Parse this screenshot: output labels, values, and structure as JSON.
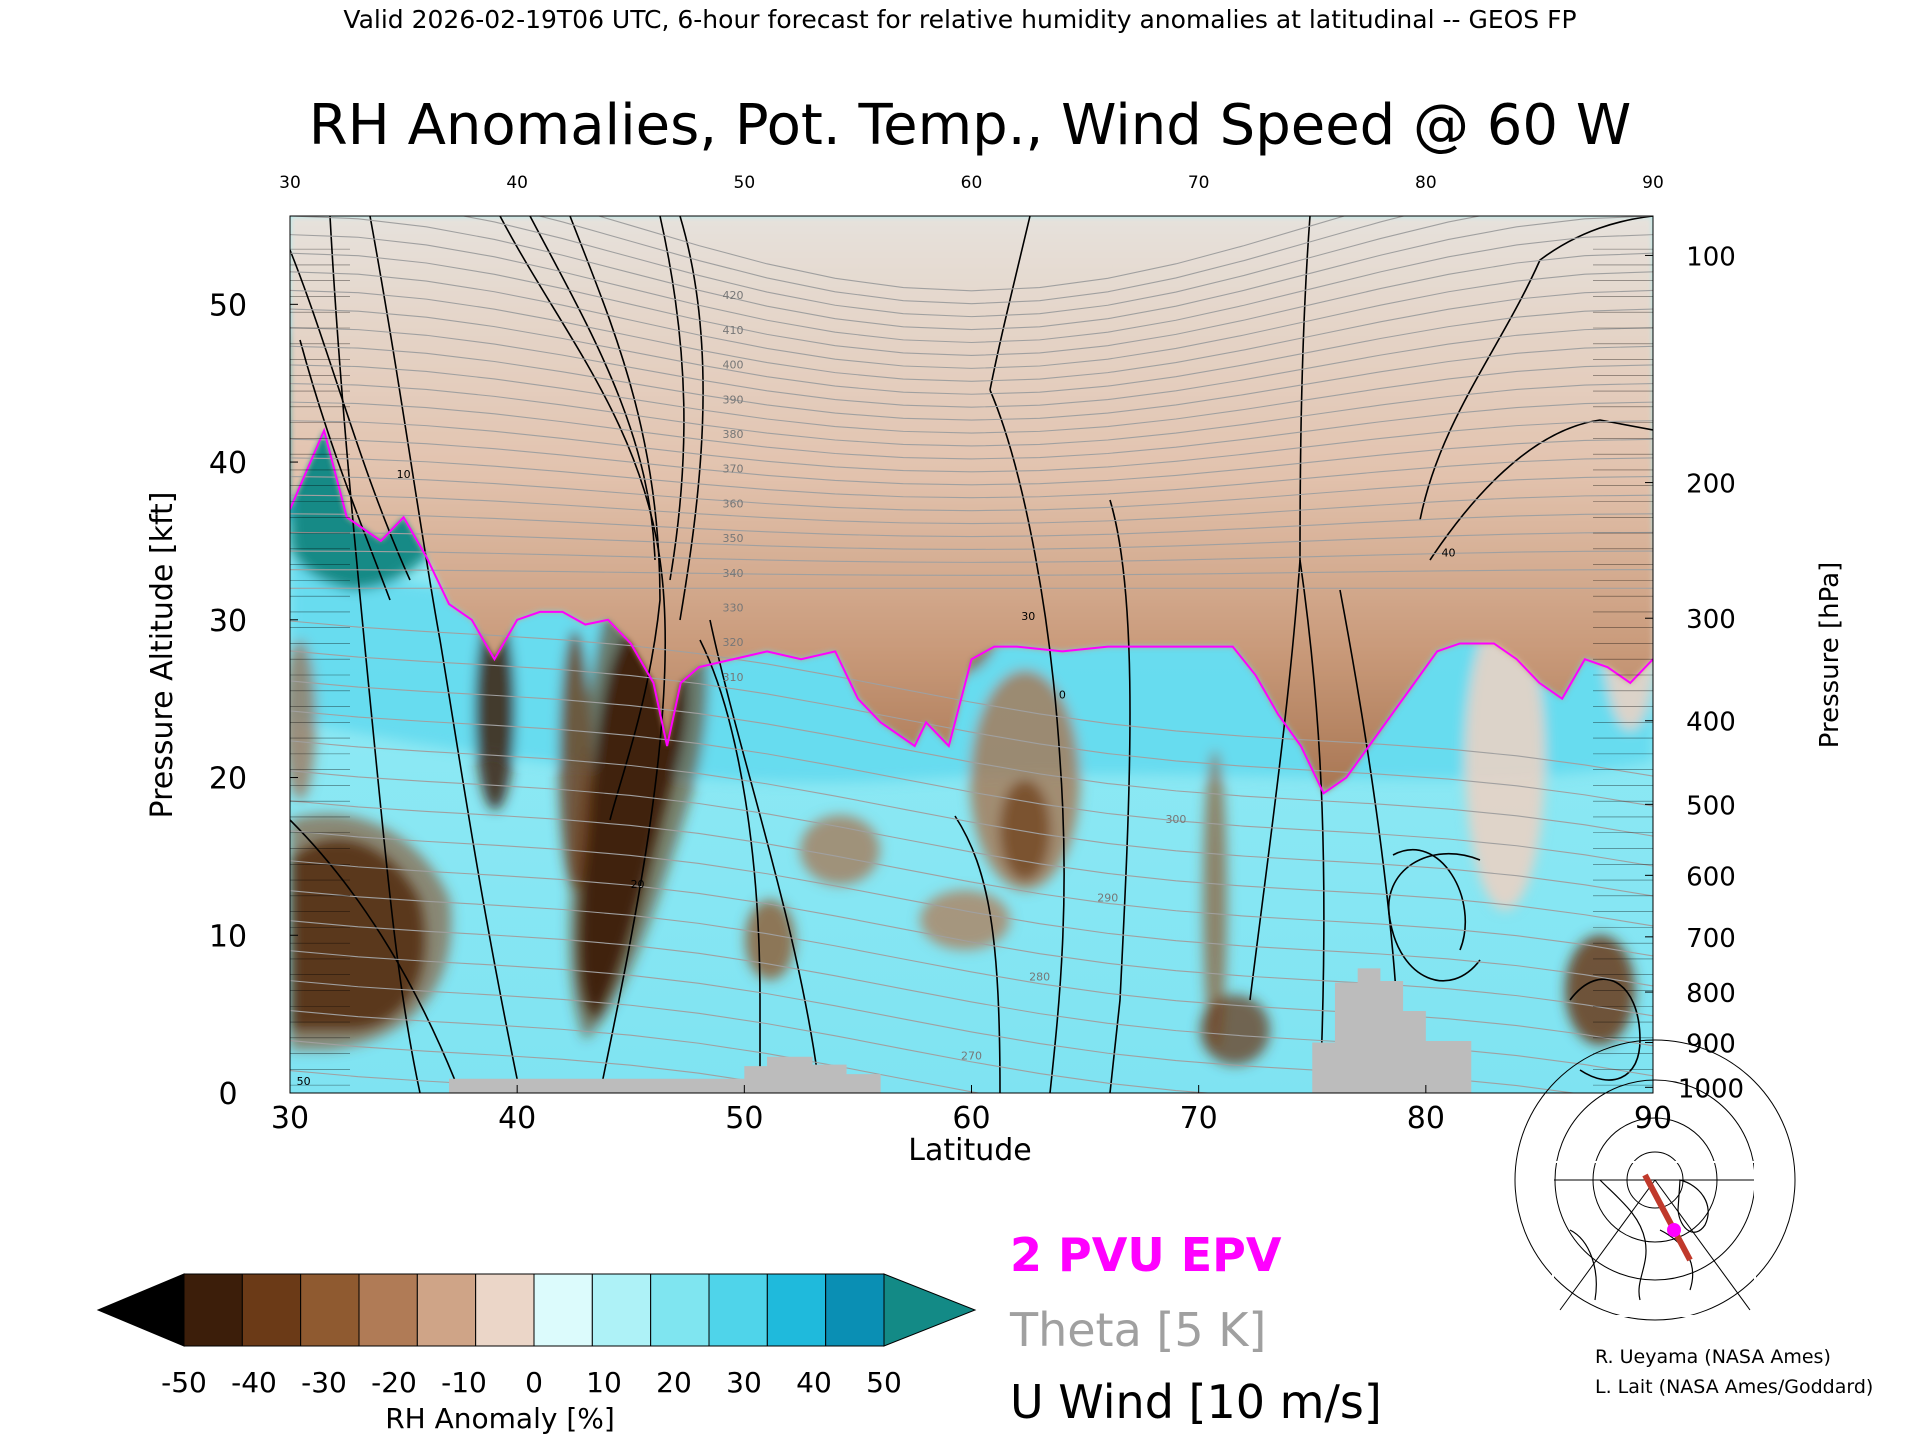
{
  "header": "Valid 2026-02-19T06 UTC, 6-hour forecast for relative humidity anomalies at latitudinal -- GEOS FP",
  "colors": {
    "epv": "#ff00ff",
    "theta": "#a0a0a0",
    "wind": "#000000",
    "terrain": "#bcbcbc",
    "track": "#c0392b"
  },
  "chart_data": {
    "type": "heatmap",
    "title": "RH Anomalies, Pot. Temp., Wind Speed @ 60 W",
    "xlabel": "Latitude",
    "ylabel": "Pressure Altitude [kft]",
    "ylabel_right": "Pressure [hPa]",
    "xlim": [
      30,
      90
    ],
    "ylim": [
      0,
      55.6
    ],
    "x_ticks": [
      "30",
      "40",
      "50",
      "60",
      "70",
      "80",
      "90"
    ],
    "y_ticks": [
      "0",
      "10",
      "20",
      "30",
      "40",
      "50"
    ],
    "pressure_ticks": [
      {
        "label": "1000",
        "kft": 0.36
      },
      {
        "label": "900",
        "kft": 3.2
      },
      {
        "label": "800",
        "kft": 6.4
      },
      {
        "label": "700",
        "kft": 9.9
      },
      {
        "label": "600",
        "kft": 13.8
      },
      {
        "label": "500",
        "kft": 18.3
      },
      {
        "label": "400",
        "kft": 23.6
      },
      {
        "label": "300",
        "kft": 30.1
      },
      {
        "label": "200",
        "kft": 38.7
      },
      {
        "label": "100",
        "kft": 53.1
      }
    ],
    "colorbar": {
      "label": "RH Anomaly [%]",
      "ticks": [
        "-50",
        "-40",
        "-30",
        "-20",
        "-10",
        "0",
        "10",
        "20",
        "30",
        "40",
        "50"
      ],
      "colors": [
        "#000000",
        "#3c1e0a",
        "#6b3a17",
        "#8f5a30",
        "#b07b56",
        "#cfa487",
        "#ebd6c8",
        "#dcfbfc",
        "#aef2f7",
        "#7fe5f0",
        "#4fd4ea",
        "#1fbadc",
        "#0a8fb4",
        "#138a86"
      ]
    },
    "legend": [
      "2 PVU EPV",
      "Theta [5 K]",
      "U Wind [10 m/s]"
    ],
    "theta_labels": [
      "270",
      "280",
      "290",
      "300",
      "310",
      "320",
      "330",
      "340",
      "350",
      "360",
      "370",
      "380",
      "390",
      "400",
      "410",
      "420"
    ],
    "wind_labels": [
      "0",
      "10",
      "20",
      "30",
      "40",
      "50"
    ],
    "tropopause_kft": [
      [
        30,
        37
      ],
      [
        31.5,
        42
      ],
      [
        32.5,
        36.5
      ],
      [
        34,
        35
      ],
      [
        35,
        36.5
      ],
      [
        36,
        34
      ],
      [
        37,
        31
      ],
      [
        38,
        30
      ],
      [
        39,
        27.5
      ],
      [
        40,
        30
      ],
      [
        41,
        30.5
      ],
      [
        42,
        30.5
      ],
      [
        43,
        29.7
      ],
      [
        44,
        30
      ],
      [
        45,
        28.5
      ],
      [
        46,
        26
      ],
      [
        46.6,
        22
      ],
      [
        47.2,
        26
      ],
      [
        48,
        27
      ],
      [
        49.5,
        27.5
      ],
      [
        51,
        28
      ],
      [
        52.5,
        27.5
      ],
      [
        54,
        28
      ],
      [
        55,
        25
      ],
      [
        56,
        23.5
      ],
      [
        57.5,
        22
      ],
      [
        58,
        23.5
      ],
      [
        59,
        22
      ],
      [
        60,
        27.5
      ],
      [
        61,
        28.3
      ],
      [
        62,
        28.3
      ],
      [
        64,
        28
      ],
      [
        66,
        28.3
      ],
      [
        68,
        28.3
      ],
      [
        70,
        28.3
      ],
      [
        71.5,
        28.3
      ],
      [
        72.5,
        26.5
      ],
      [
        73.5,
        24
      ],
      [
        74.5,
        22
      ],
      [
        75.5,
        19
      ],
      [
        76.5,
        20
      ],
      [
        77.5,
        22
      ],
      [
        78.5,
        24
      ],
      [
        79.5,
        26
      ],
      [
        80.5,
        28
      ],
      [
        81.5,
        28.5
      ],
      [
        83,
        28.5
      ],
      [
        84,
        27.5
      ],
      [
        85,
        26
      ],
      [
        86,
        25
      ],
      [
        87,
        27.5
      ],
      [
        88,
        27
      ],
      [
        89,
        26
      ],
      [
        90,
        27.5
      ]
    ],
    "terrain_kft": [
      [
        30,
        0
      ],
      [
        37,
        0
      ],
      [
        37,
        0.9
      ],
      [
        50,
        0.9
      ],
      [
        50,
        1.7
      ],
      [
        51,
        1.7
      ],
      [
        51,
        2.3
      ],
      [
        53,
        2.3
      ],
      [
        53,
        1.8
      ],
      [
        54.5,
        1.8
      ],
      [
        54.5,
        1.2
      ],
      [
        56,
        1.2
      ],
      [
        56,
        0
      ],
      [
        75,
        0
      ],
      [
        75,
        3.2
      ],
      [
        76,
        3.2
      ],
      [
        76,
        7
      ],
      [
        77,
        7
      ],
      [
        77,
        7.9
      ],
      [
        78,
        7.9
      ],
      [
        78,
        7.1
      ],
      [
        79,
        7.1
      ],
      [
        79,
        5.2
      ],
      [
        80,
        5.2
      ],
      [
        80,
        3.3
      ],
      [
        82,
        3.3
      ],
      [
        82,
        0
      ],
      [
        90,
        0
      ]
    ]
  },
  "map_inset": {
    "credits": [
      "R. Ueyama (NASA Ames)",
      "L. Lait (NASA Ames/Goddard)"
    ]
  }
}
